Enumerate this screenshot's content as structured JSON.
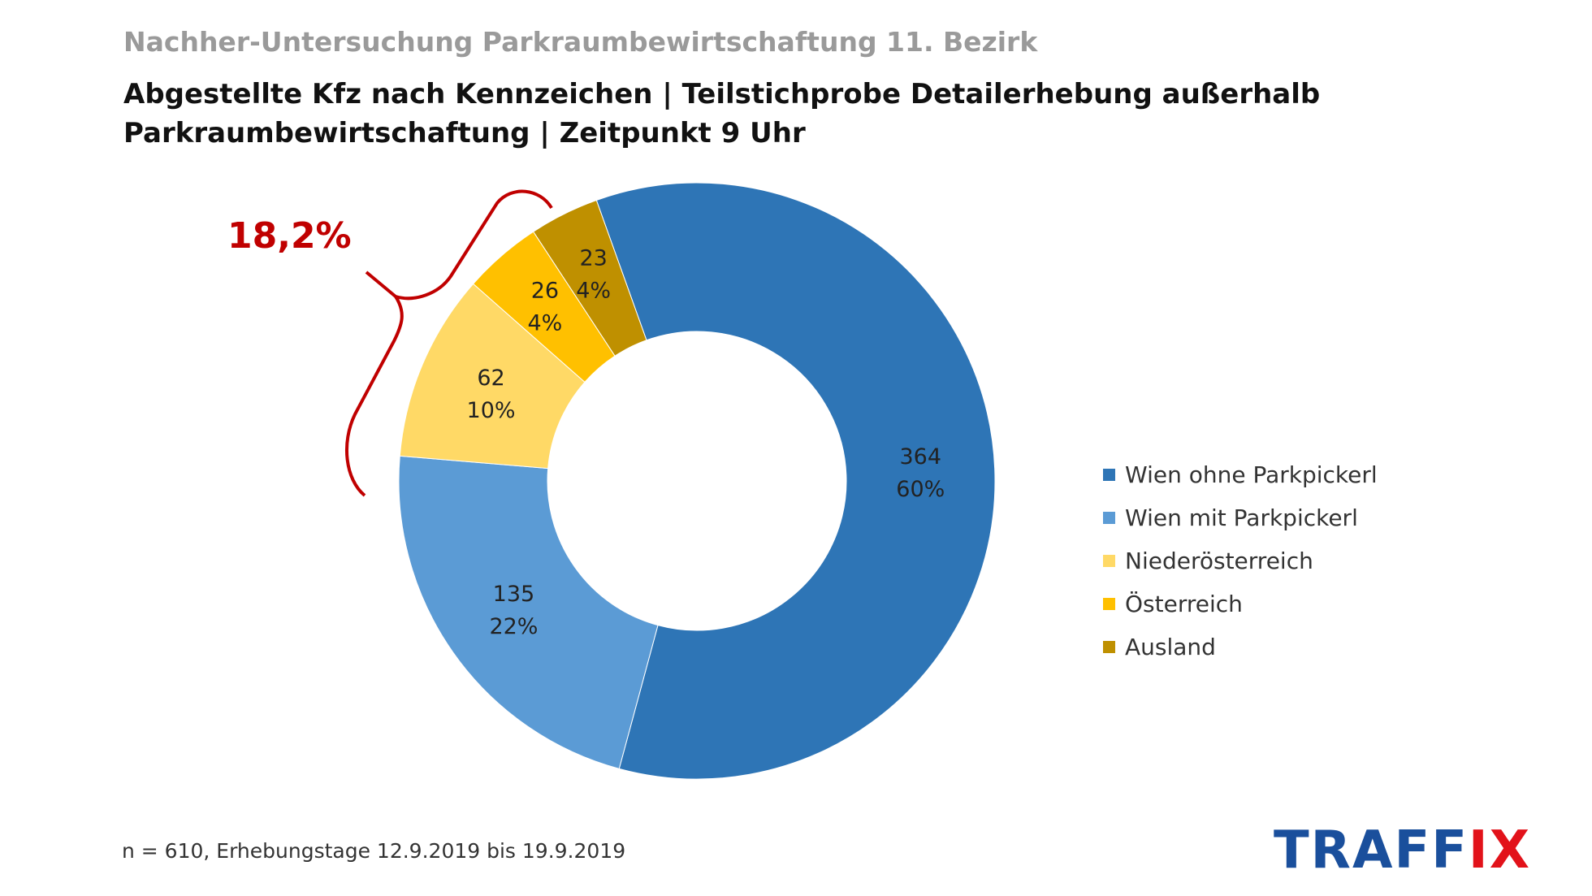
{
  "header": {
    "supertitle": "Nachher-Untersuchung Parkraumbewirtschaftung 11. Bezirk",
    "title_line1": "Abgestellte Kfz nach Kennzeichen | Teilstichprobe Detailerhebung außerhalb",
    "title_line2": "Parkraumbewirtschaftung | Zeitpunkt 9 Uhr"
  },
  "chart_data": {
    "type": "pie",
    "variant": "donut",
    "categories": [
      "Wien ohne Parkpickerl",
      "Wien mit Parkpickerl",
      "Niederösterreich",
      "Österreich",
      "Ausland"
    ],
    "values": [
      364,
      135,
      62,
      26,
      23
    ],
    "percent_labels": [
      "60%",
      "22%",
      "10%",
      "4%",
      "4%"
    ],
    "colors": [
      "#2e75b6",
      "#5b9bd5",
      "#ffd966",
      "#ffc000",
      "#bf9000"
    ],
    "legend": "right",
    "annotation": {
      "text": "18,2%",
      "color": "#c00000"
    }
  },
  "footnote": "n = 610, Erhebungstage 12.9.2019 bis 19.9.2019",
  "logo": {
    "text_main": "TRAFF",
    "text_accent": "IX"
  }
}
